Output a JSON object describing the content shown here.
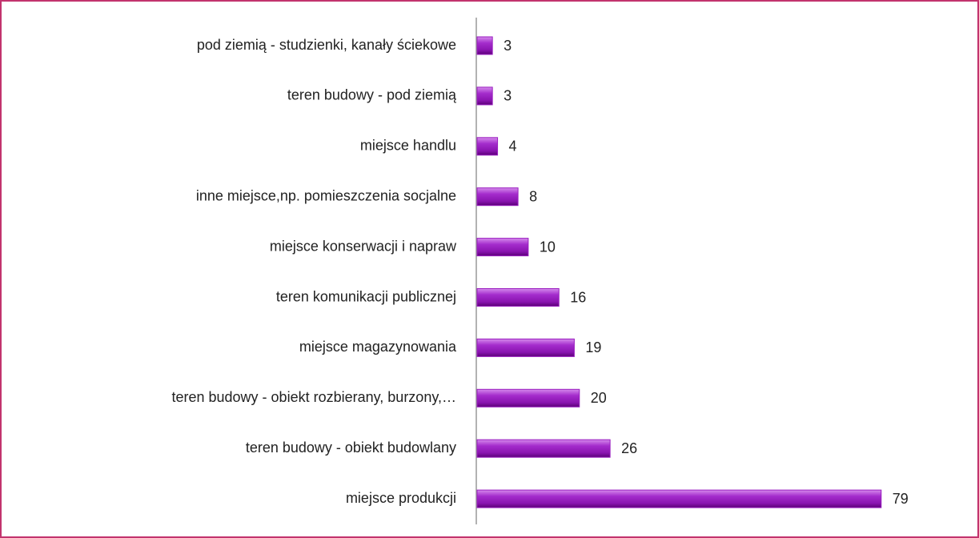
{
  "chart_data": {
    "type": "bar",
    "orientation": "horizontal",
    "categories": [
      "pod ziemią - studzienki, kanały ściekowe",
      "teren budowy - pod ziemią",
      "miejsce handlu",
      "inne miejsce,np. pomieszczenia socjalne",
      "miejsce konserwacji i napraw",
      "teren komunikacji publicznej",
      "miejsce magazynowania",
      "teren budowy - obiekt rozbierany, burzony,…",
      "teren budowy - obiekt budowlany",
      "miejsce produkcji"
    ],
    "values": [
      3,
      3,
      4,
      8,
      10,
      16,
      19,
      20,
      26,
      79
    ],
    "color": "#9a1ec0"
  }
}
